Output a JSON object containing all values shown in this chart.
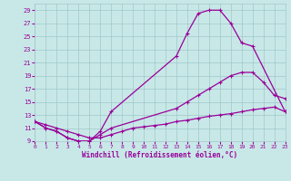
{
  "xlabel": "Windchill (Refroidissement éolien,°C)",
  "bg_color": "#c8e8e8",
  "grid_color": "#a0c8c8",
  "line_color": "#990099",
  "xlim": [
    0,
    23
  ],
  "ylim": [
    9,
    30
  ],
  "xticks": [
    0,
    1,
    2,
    3,
    4,
    5,
    6,
    7,
    8,
    9,
    10,
    11,
    12,
    13,
    14,
    15,
    16,
    17,
    18,
    19,
    20,
    21,
    22,
    23
  ],
  "yticks": [
    9,
    11,
    13,
    15,
    17,
    19,
    21,
    23,
    25,
    27,
    29
  ],
  "line1_x": [
    0,
    1,
    2,
    3,
    4,
    5,
    6,
    7,
    13,
    14,
    15,
    16,
    17,
    18,
    19,
    20,
    23
  ],
  "line1_y": [
    12,
    11,
    10.5,
    9.5,
    9,
    9,
    10.5,
    13.5,
    22,
    25.5,
    28.5,
    29,
    29,
    27,
    24,
    23.5,
    13.5
  ],
  "line2_x": [
    0,
    1,
    2,
    3,
    4,
    5,
    6,
    7,
    8,
    9,
    10,
    11,
    12,
    13,
    14,
    15,
    16,
    17,
    18,
    19,
    20,
    21,
    22,
    23
  ],
  "line2_y": [
    12,
    11.5,
    11,
    10.5,
    10,
    9.5,
    9.5,
    10,
    10.5,
    11,
    11.2,
    11.4,
    11.6,
    12,
    12.2,
    12.5,
    12.8,
    13,
    13.2,
    13.5,
    13.8,
    14,
    14.2,
    13.5
  ],
  "line3_x": [
    0,
    1,
    2,
    3,
    4,
    5,
    6,
    7,
    13,
    14,
    15,
    16,
    17,
    18,
    19,
    20,
    21,
    22,
    23
  ],
  "line3_y": [
    12,
    11,
    10.5,
    9.5,
    9,
    9,
    10,
    11,
    14,
    15,
    16,
    17,
    18,
    19,
    19.5,
    19.5,
    18,
    16,
    15.5
  ]
}
